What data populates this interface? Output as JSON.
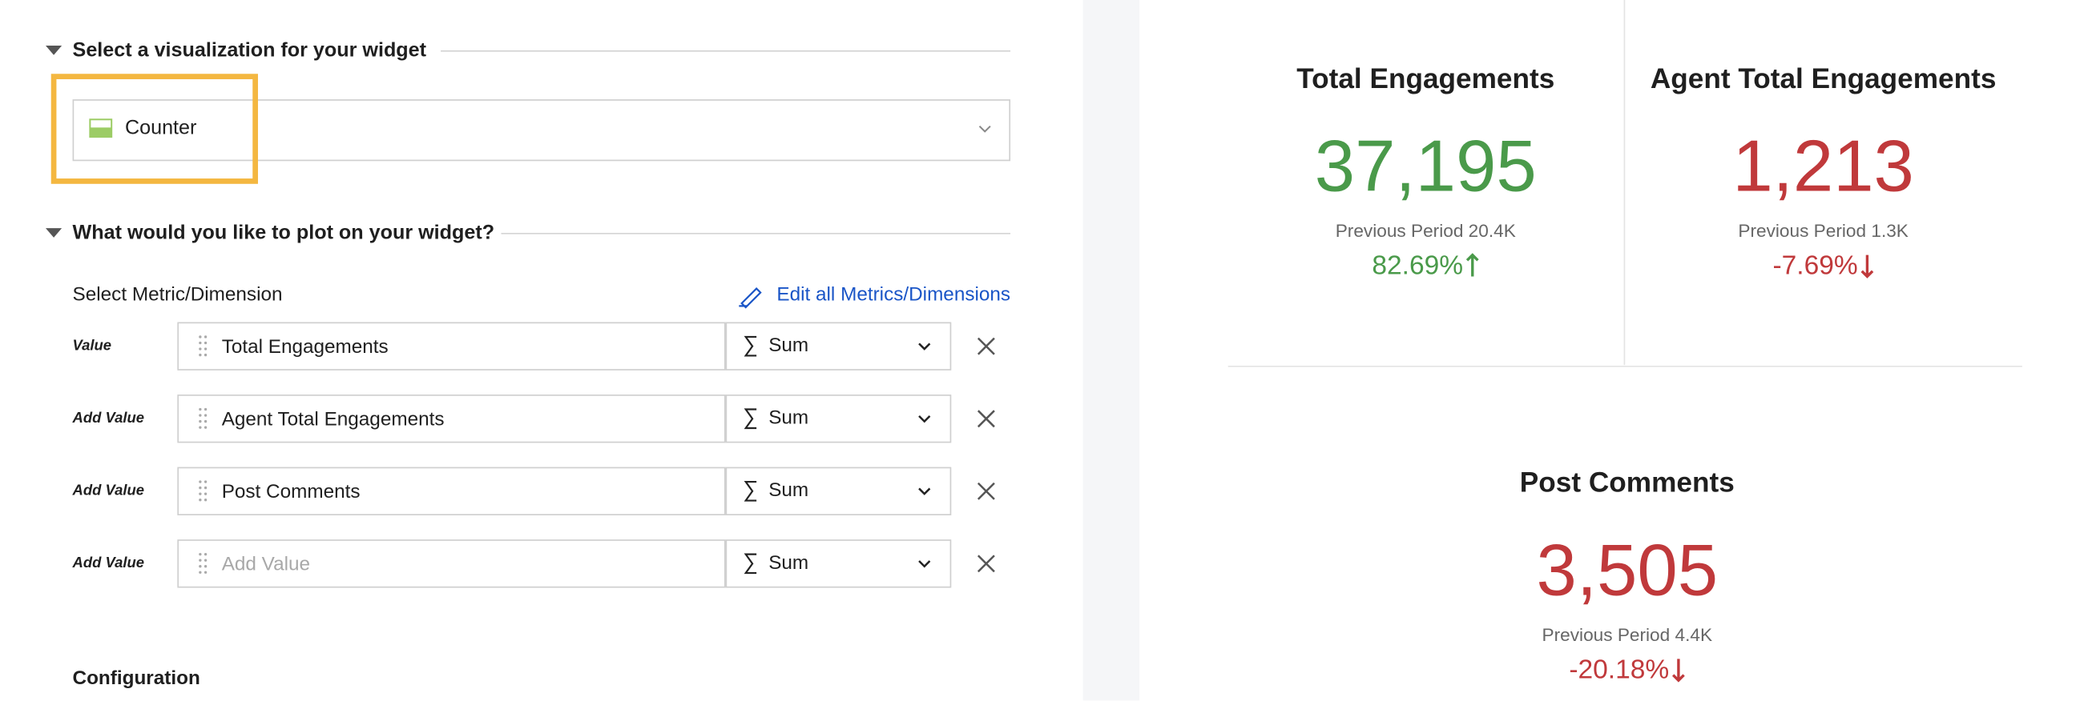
{
  "visualization_section": {
    "title": "Select a visualization for your widget",
    "selected": "Counter"
  },
  "plot_section": {
    "title": "What would you like to plot on your widget?",
    "metric_label": "Select Metric/Dimension",
    "edit_link": "Edit all Metrics/Dimensions",
    "rows": [
      {
        "label": "Value",
        "field": "Total Engagements",
        "aggregation": "Sum"
      },
      {
        "label": "Add Value",
        "field": "Agent Total Engagements",
        "aggregation": "Sum"
      },
      {
        "label": "Add Value",
        "field": "Post Comments",
        "aggregation": "Sum"
      },
      {
        "label": "Add Value",
        "placeholder": "Add Value",
        "aggregation": "Sum"
      }
    ]
  },
  "configuration": {
    "title": "Configuration"
  },
  "counters": [
    {
      "title": "Total Engagements",
      "value": "37,195",
      "previous": "Previous Period 20.4K",
      "change": "82.69%",
      "direction": "up",
      "color": "#4a9a4a"
    },
    {
      "title": "Agent Total Engagements",
      "value": "1,213",
      "previous": "Previous Period 1.3K",
      "change": "-7.69%",
      "direction": "down",
      "color": "#c0393b"
    },
    {
      "title": "Post Comments",
      "value": "3,505",
      "previous": "Previous Period 4.4K",
      "change": "-20.18%",
      "direction": "down",
      "color": "#c0393b"
    }
  ]
}
